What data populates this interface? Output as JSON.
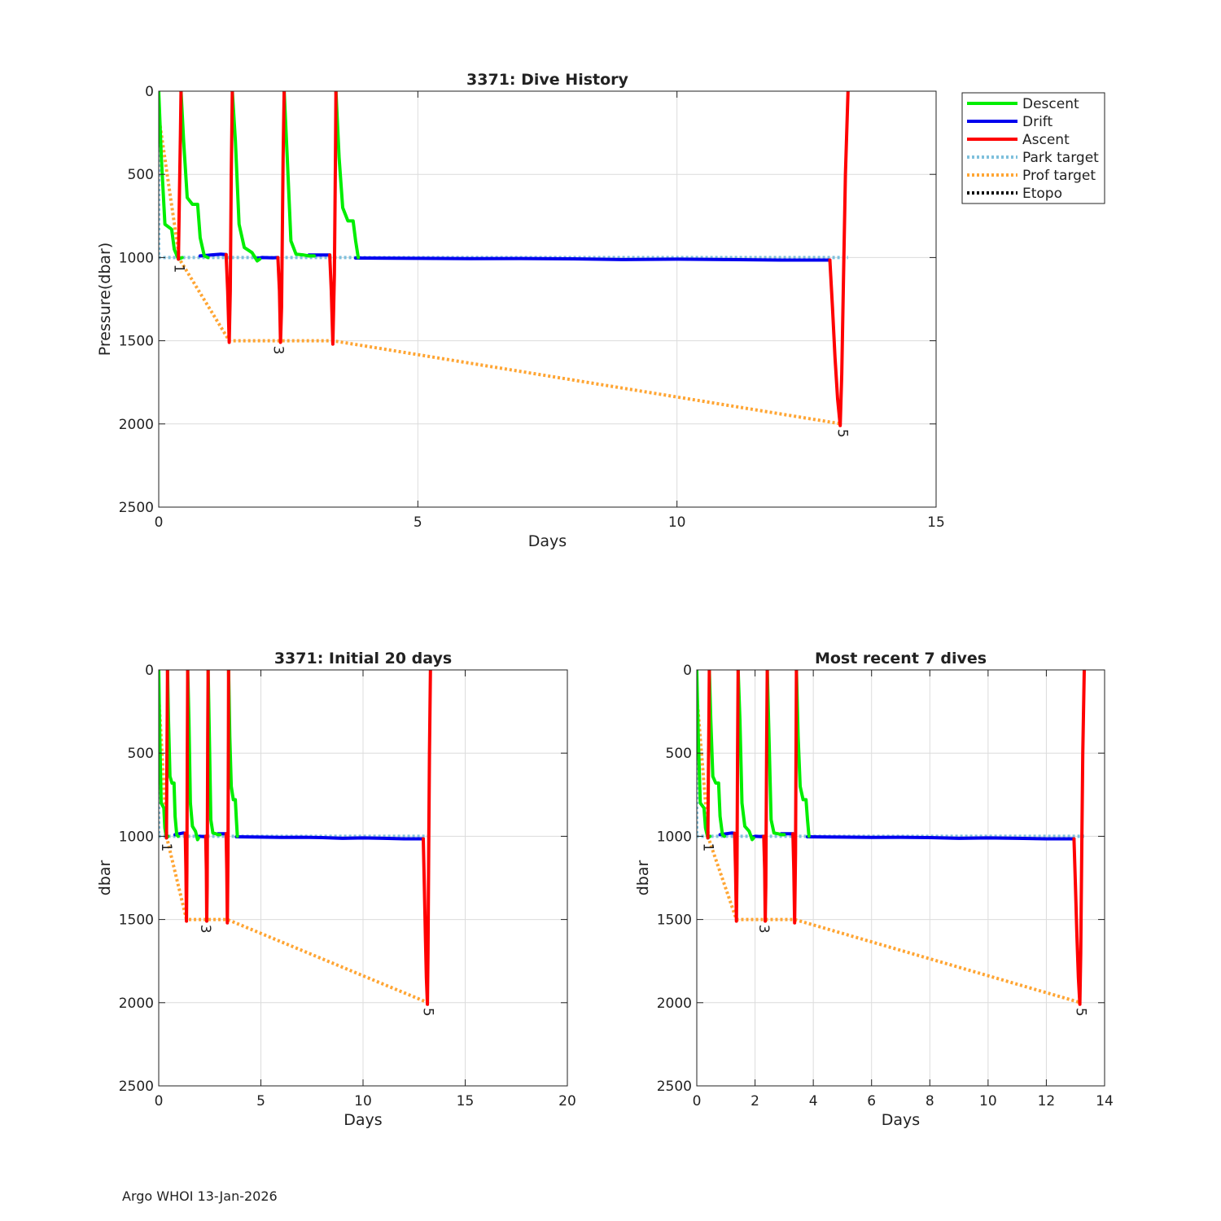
{
  "footer": "Argo WHOI 13-Jan-2026",
  "colors": {
    "descent": "#00ee00",
    "drift": "#0000ee",
    "ascent": "#ff0000",
    "park": "#7ec0dc",
    "prof": "#ffa533",
    "etopo": "#000000",
    "grid": "#dcdcdc",
    "axis": "#222222"
  },
  "chart_data": [
    {
      "id": "main",
      "type": "line",
      "title": "3371: Dive History",
      "xlabel": "Days",
      "ylabel": "Pressure(dbar)",
      "xlim": [
        0,
        15
      ],
      "ylim": [
        0,
        2500
      ],
      "y_reversed": true,
      "xticks": [
        0,
        5,
        10,
        15
      ],
      "yticks": [
        0,
        500,
        1000,
        1500,
        2000,
        2500
      ],
      "grid": true,
      "legend_position": "outside-right",
      "legend": [
        {
          "label": "Descent",
          "series": "descent",
          "style": "solid"
        },
        {
          "label": "Drift",
          "series": "drift",
          "style": "solid"
        },
        {
          "label": "Ascent",
          "series": "ascent",
          "style": "solid"
        },
        {
          "label": "Park target",
          "series": "park",
          "style": "dotted"
        },
        {
          "label": "Prof target",
          "series": "prof",
          "style": "dotted"
        },
        {
          "label": "Etopo",
          "series": "etopo",
          "style": "dotted"
        }
      ],
      "annotations": [
        {
          "text": "1",
          "x": 0.4,
          "y": 1030
        },
        {
          "text": "3",
          "x": 2.32,
          "y": 1520
        },
        {
          "text": "5",
          "x": 13.2,
          "y": 2020
        }
      ]
    },
    {
      "id": "initial",
      "type": "line",
      "title": "3371: Initial 20 days",
      "xlabel": "Days",
      "ylabel": "dbar",
      "xlim": [
        0,
        20
      ],
      "ylim": [
        0,
        2500
      ],
      "y_reversed": true,
      "xticks": [
        0,
        5,
        10,
        15,
        20
      ],
      "yticks": [
        0,
        500,
        1000,
        1500,
        2000,
        2500
      ],
      "grid": true,
      "annotations": [
        {
          "text": "1",
          "x": 0.4,
          "y": 1030
        },
        {
          "text": "3",
          "x": 2.32,
          "y": 1520
        },
        {
          "text": "5",
          "x": 13.2,
          "y": 2020
        }
      ]
    },
    {
      "id": "recent",
      "type": "line",
      "title": "Most recent 7 dives",
      "xlabel": "Days",
      "ylabel": "dbar",
      "xlim": [
        0,
        14
      ],
      "ylim": [
        0,
        2500
      ],
      "y_reversed": true,
      "xticks": [
        0,
        2,
        4,
        6,
        8,
        10,
        12,
        14
      ],
      "yticks": [
        0,
        500,
        1000,
        1500,
        2000,
        2500
      ],
      "grid": true,
      "annotations": [
        {
          "text": "1",
          "x": 0.4,
          "y": 1030
        },
        {
          "text": "3",
          "x": 2.32,
          "y": 1520
        },
        {
          "text": "5",
          "x": 13.2,
          "y": 2020
        }
      ]
    }
  ],
  "series_data": {
    "descent": [
      [
        [
          0,
          0
        ],
        [
          0.05,
          400
        ],
        [
          0.12,
          800
        ],
        [
          0.25,
          830
        ],
        [
          0.3,
          950
        ],
        [
          0.38,
          1010
        ],
        [
          0.45,
          1000
        ]
      ],
      [
        [
          0.43,
          0
        ],
        [
          0.48,
          300
        ],
        [
          0.55,
          640
        ],
        [
          0.65,
          680
        ],
        [
          0.75,
          680
        ],
        [
          0.8,
          880
        ],
        [
          0.88,
          990
        ],
        [
          0.95,
          1000
        ]
      ],
      [
        [
          1.42,
          0
        ],
        [
          1.48,
          300
        ],
        [
          1.55,
          800
        ],
        [
          1.65,
          940
        ],
        [
          1.75,
          960
        ],
        [
          1.8,
          970
        ],
        [
          1.9,
          1020
        ],
        [
          1.95,
          1010
        ]
      ],
      [
        [
          2.42,
          0
        ],
        [
          2.48,
          400
        ],
        [
          2.55,
          900
        ],
        [
          2.65,
          980
        ],
        [
          2.8,
          985
        ],
        [
          2.9,
          990
        ],
        [
          3.0,
          990
        ]
      ],
      [
        [
          3.42,
          0
        ],
        [
          3.48,
          400
        ],
        [
          3.55,
          700
        ],
        [
          3.65,
          780
        ],
        [
          3.75,
          780
        ],
        [
          3.8,
          900
        ],
        [
          3.85,
          1000
        ]
      ]
    ],
    "drift": [
      [
        [
          0.8,
          990
        ],
        [
          1.0,
          985
        ],
        [
          1.2,
          980
        ],
        [
          1.3,
          982
        ]
      ],
      [
        [
          1.9,
          1005
        ],
        [
          2.0,
          1000
        ],
        [
          2.2,
          1002
        ],
        [
          2.3,
          1000
        ]
      ],
      [
        [
          2.9,
          985
        ],
        [
          3.1,
          985
        ],
        [
          3.3,
          985
        ]
      ],
      [
        [
          3.8,
          1003
        ],
        [
          5,
          1005
        ],
        [
          6,
          1007
        ],
        [
          7,
          1006
        ],
        [
          8,
          1008
        ],
        [
          9,
          1012
        ],
        [
          10,
          1010
        ],
        [
          11,
          1012
        ],
        [
          12,
          1015
        ],
        [
          12.95,
          1015
        ]
      ]
    ],
    "ascent": [
      [
        [
          0.38,
          1010
        ],
        [
          0.4,
          600
        ],
        [
          0.42,
          250
        ],
        [
          0.43,
          0
        ]
      ],
      [
        [
          1.3,
          982
        ],
        [
          1.33,
          1200
        ],
        [
          1.36,
          1510
        ],
        [
          1.38,
          1200
        ],
        [
          1.4,
          500
        ],
        [
          1.42,
          0
        ]
      ],
      [
        [
          2.3,
          1000
        ],
        [
          2.33,
          1200
        ],
        [
          2.35,
          1510
        ],
        [
          2.37,
          1300
        ],
        [
          2.4,
          400
        ],
        [
          2.42,
          0
        ]
      ],
      [
        [
          3.3,
          985
        ],
        [
          3.33,
          1200
        ],
        [
          3.36,
          1520
        ],
        [
          3.39,
          1100
        ],
        [
          3.41,
          400
        ],
        [
          3.42,
          0
        ]
      ],
      [
        [
          12.95,
          1015
        ],
        [
          13.0,
          1300
        ],
        [
          13.05,
          1600
        ],
        [
          13.1,
          1850
        ],
        [
          13.15,
          2010
        ],
        [
          13.18,
          1700
        ],
        [
          13.22,
          1000
        ],
        [
          13.25,
          500
        ],
        [
          13.3,
          0
        ]
      ]
    ],
    "park": [
      [
        [
          0,
          0
        ],
        [
          0,
          1000
        ],
        [
          13.3,
          1000
        ]
      ]
    ],
    "prof": [
      [
        [
          0,
          150
        ],
        [
          0.4,
          1010
        ],
        [
          1.36,
          1500
        ],
        [
          2.35,
          1500
        ],
        [
          3.36,
          1500
        ],
        [
          13.18,
          2000
        ]
      ]
    ],
    "etopo": []
  }
}
